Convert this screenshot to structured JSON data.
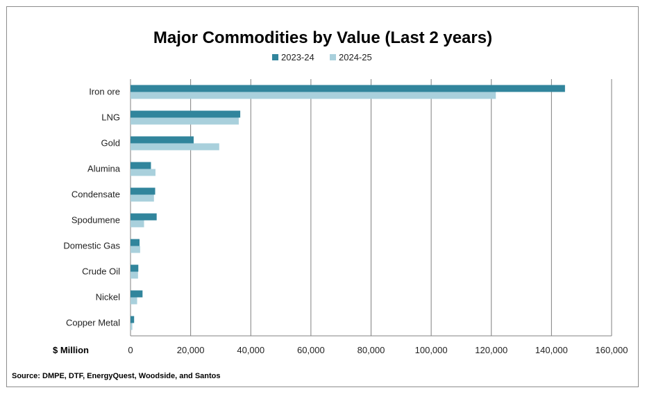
{
  "chart_data": {
    "type": "bar",
    "orientation": "horizontal",
    "title": "Major Commodities by Value (Last 2 years)",
    "categories": [
      "Iron ore",
      "LNG",
      "Gold",
      "Alumina",
      "Condensate",
      "Spodumene",
      "Domestic Gas",
      "Crude Oil",
      "Nickel",
      "Copper Metal"
    ],
    "series": [
      {
        "name": "2023-24",
        "color": "#31859c",
        "values": [
          144500,
          36500,
          21000,
          6800,
          8200,
          8700,
          3000,
          2600,
          4000,
          1200
        ]
      },
      {
        "name": "2024-25",
        "color": "#a9d0dc",
        "values": [
          121500,
          36000,
          29500,
          8300,
          7800,
          4500,
          3200,
          2500,
          2200,
          600
        ]
      }
    ],
    "xlabel": "$ Million",
    "xlim": [
      0,
      160000
    ],
    "xticks": [
      "0",
      "20,000",
      "40,000",
      "60,000",
      "80,000",
      "100,000",
      "120,000",
      "140,000",
      "160,000"
    ],
    "grid": true,
    "legend_position": "top-center"
  },
  "source_note": "Source:  DMPE, DTF, EnergyQuest, Woodside, and Santos"
}
